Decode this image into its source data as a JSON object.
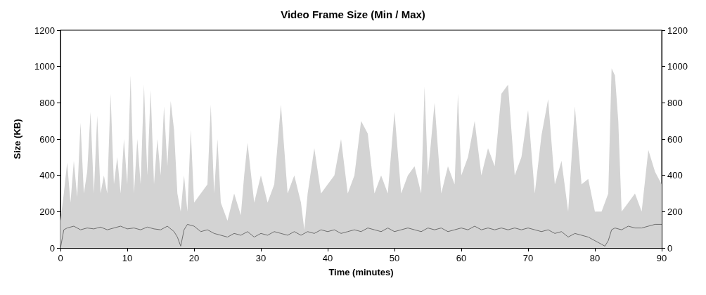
{
  "chart_data": {
    "type": "area",
    "title": "Video Frame Size (Min / Max)",
    "xlabel": "Time (minutes)",
    "ylabel": "Size (KB)",
    "xlim": [
      0,
      90
    ],
    "xticks": [
      0,
      10,
      20,
      30,
      40,
      50,
      60,
      70,
      80,
      90
    ],
    "ylim": [
      0,
      1200
    ],
    "yticks": [
      0,
      200,
      400,
      600,
      800,
      1000,
      1200
    ],
    "y2lim": [
      0,
      1200
    ],
    "y2ticks": [
      0,
      200,
      400,
      600,
      800,
      1000,
      1200
    ],
    "grid": false,
    "marker": "none",
    "line_style": "solid",
    "series": [
      {
        "color": "#d3d3d3",
        "x": [
          0,
          0.5,
          1,
          1.5,
          2,
          2.5,
          3,
          3.5,
          4,
          4.5,
          5,
          5.5,
          6,
          6.5,
          7,
          7.5,
          8,
          8.5,
          9,
          9.5,
          10,
          10.5,
          11,
          11.5,
          12,
          12.5,
          13,
          13.5,
          14,
          14.5,
          15,
          15.5,
          16,
          16.5,
          17,
          17.5,
          18,
          18.5,
          19,
          19.5,
          20,
          21,
          22,
          22.5,
          23,
          23.5,
          24,
          25,
          26,
          27,
          27.5,
          28,
          29,
          30,
          31,
          32,
          33,
          34,
          35,
          36,
          36.5,
          37,
          38,
          39,
          40,
          41,
          42,
          43,
          44,
          45,
          46,
          47,
          48,
          49,
          50,
          51,
          52,
          53,
          54,
          54.5,
          55,
          56,
          57,
          58,
          59,
          59.5,
          60,
          61,
          62,
          63,
          64,
          65,
          66,
          67,
          68,
          69,
          70,
          71,
          72,
          73,
          74,
          75,
          76,
          77,
          78,
          79,
          80,
          81,
          82,
          82.5,
          83,
          83.5,
          84,
          85,
          86,
          87,
          88,
          89,
          90
        ],
        "values": [
          150,
          300,
          470,
          250,
          480,
          280,
          690,
          300,
          420,
          750,
          300,
          730,
          300,
          400,
          300,
          850,
          350,
          500,
          300,
          600,
          350,
          950,
          300,
          600,
          350,
          900,
          400,
          870,
          350,
          600,
          400,
          780,
          450,
          810,
          650,
          300,
          200,
          400,
          200,
          650,
          250,
          300,
          350,
          790,
          300,
          600,
          250,
          150,
          300,
          180,
          400,
          580,
          250,
          400,
          250,
          350,
          790,
          300,
          400,
          250,
          100,
          300,
          550,
          300,
          350,
          400,
          600,
          300,
          400,
          700,
          630,
          300,
          400,
          300,
          750,
          300,
          400,
          450,
          300,
          890,
          400,
          800,
          300,
          450,
          350,
          850,
          400,
          500,
          700,
          400,
          550,
          450,
          850,
          900,
          400,
          500,
          760,
          300,
          620,
          820,
          350,
          480,
          200,
          780,
          350,
          380,
          200,
          200,
          300,
          990,
          950,
          700,
          200,
          250,
          300,
          200,
          540,
          420,
          350
        ]
      },
      {
        "type": "line",
        "color": "#6e6e6e",
        "x": [
          0,
          0.5,
          1,
          2,
          3,
          4,
          5,
          6,
          7,
          8,
          9,
          10,
          11,
          12,
          13,
          14,
          15,
          16,
          17,
          17.5,
          18,
          18.5,
          19,
          20,
          21,
          22,
          23,
          24,
          25,
          26,
          27,
          28,
          29,
          30,
          31,
          32,
          33,
          34,
          35,
          36,
          37,
          38,
          39,
          40,
          41,
          42,
          43,
          44,
          45,
          46,
          47,
          48,
          49,
          50,
          51,
          52,
          53,
          54,
          55,
          56,
          57,
          58,
          59,
          60,
          61,
          62,
          63,
          64,
          65,
          66,
          67,
          68,
          69,
          70,
          71,
          72,
          73,
          74,
          75,
          76,
          77,
          78,
          79,
          80,
          81,
          81.5,
          82,
          82.5,
          83,
          84,
          85,
          86,
          87,
          88,
          89,
          90
        ],
        "values": [
          0,
          100,
          110,
          120,
          100,
          110,
          105,
          115,
          100,
          110,
          120,
          105,
          110,
          100,
          115,
          105,
          100,
          120,
          90,
          60,
          10,
          100,
          130,
          120,
          90,
          100,
          80,
          70,
          60,
          80,
          70,
          90,
          60,
          80,
          70,
          90,
          80,
          70,
          90,
          70,
          90,
          80,
          100,
          90,
          100,
          80,
          90,
          100,
          90,
          110,
          100,
          90,
          110,
          90,
          100,
          110,
          100,
          90,
          110,
          100,
          110,
          90,
          100,
          110,
          100,
          120,
          100,
          110,
          100,
          110,
          100,
          110,
          100,
          110,
          100,
          90,
          100,
          80,
          90,
          60,
          80,
          70,
          60,
          40,
          20,
          10,
          40,
          100,
          110,
          100,
          120,
          110,
          110,
          120,
          130,
          130
        ]
      }
    ]
  }
}
